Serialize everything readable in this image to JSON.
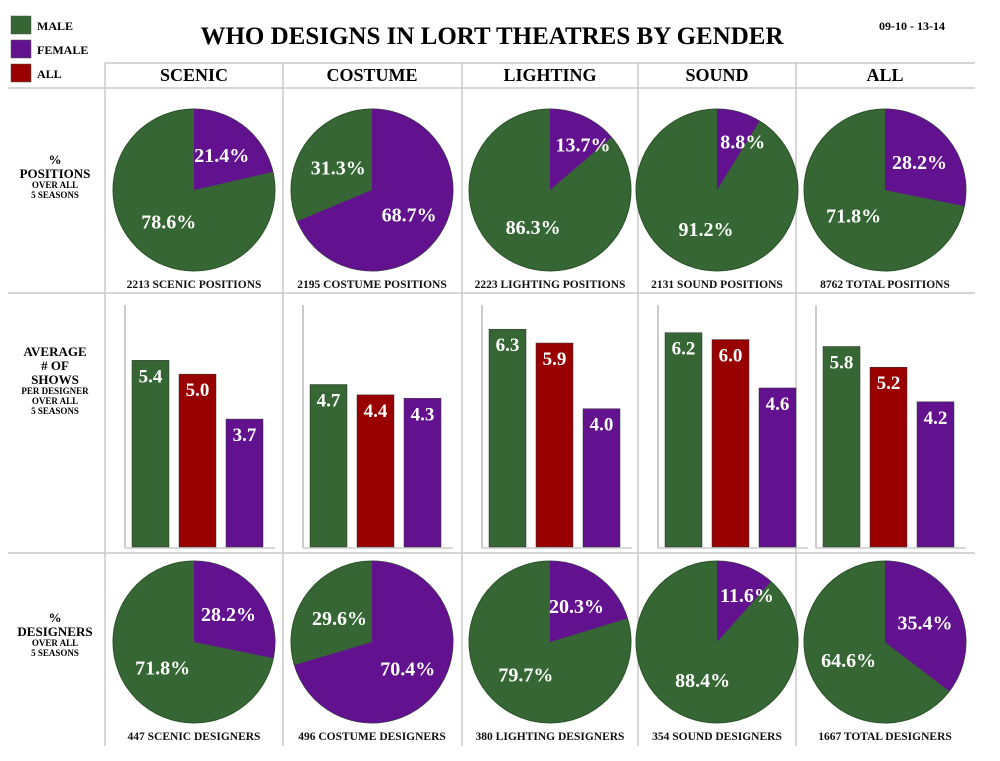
{
  "title": "WHO DESIGNS IN LORT THEATRES BY GENDER",
  "date_range": "09-10 - 13-14",
  "colors": {
    "male": "#356633",
    "female": "#62118f",
    "all": "#990000"
  },
  "legend": [
    {
      "label": "MALE",
      "color": "#356633"
    },
    {
      "label": "FEMALE",
      "color": "#62118f"
    },
    {
      "label": "ALL",
      "color": "#990000"
    }
  ],
  "columns": [
    "SCENIC",
    "COSTUME",
    "LIGHTING",
    "SOUND",
    "ALL"
  ],
  "row_labels": {
    "positions": [
      "%",
      "POSITIONS",
      "OVER ALL",
      "5 SEASONS"
    ],
    "shows": [
      "AVERAGE",
      "# OF",
      "SHOWS",
      "PER DESIGNER",
      "OVER ALL",
      "5 SEASONS"
    ],
    "designers": [
      "%",
      "DESIGNERS",
      "OVER ALL",
      "5 SEASONS"
    ]
  },
  "chart_data": [
    {
      "type": "pie",
      "row": "% POSITIONS OVER ALL 5 SEASONS",
      "categories": [
        "SCENIC",
        "COSTUME",
        "LIGHTING",
        "SOUND",
        "ALL"
      ],
      "female_pct": [
        21.4,
        68.7,
        13.7,
        8.8,
        28.2
      ],
      "male_pct": [
        78.6,
        31.3,
        86.3,
        91.2,
        71.8
      ],
      "captions": [
        "2213 SCENIC POSITIONS",
        "2195 COSTUME POSITIONS",
        "2223 LIGHTING POSITIONS",
        "2131 SOUND POSITIONS",
        "8762 TOTAL POSITIONS"
      ]
    },
    {
      "type": "bar",
      "row": "AVERAGE # OF SHOWS PER DESIGNER OVER ALL 5 SEASONS",
      "categories": [
        "SCENIC",
        "COSTUME",
        "LIGHTING",
        "SOUND",
        "ALL"
      ],
      "ylim": [
        0,
        7
      ],
      "series": [
        {
          "name": "MALE",
          "values": [
            5.4,
            4.7,
            6.3,
            6.2,
            5.8
          ]
        },
        {
          "name": "ALL",
          "values": [
            5.0,
            4.4,
            5.9,
            6.0,
            5.2
          ]
        },
        {
          "name": "FEMALE",
          "values": [
            3.7,
            4.3,
            4.0,
            4.6,
            4.2
          ]
        }
      ]
    },
    {
      "type": "pie",
      "row": "% DESIGNERS OVER ALL 5 SEASONS",
      "categories": [
        "SCENIC",
        "COSTUME",
        "LIGHTING",
        "SOUND",
        "ALL"
      ],
      "female_pct": [
        28.2,
        70.4,
        20.3,
        11.6,
        35.4
      ],
      "male_pct": [
        71.8,
        29.6,
        79.7,
        88.4,
        64.6
      ],
      "captions": [
        "447 SCENIC DESIGNERS",
        "496 COSTUME DESIGNERS",
        "380 LIGHTING DESIGNERS",
        "354 SOUND DESIGNERS",
        "1667 TOTAL DESIGNERS"
      ]
    }
  ]
}
